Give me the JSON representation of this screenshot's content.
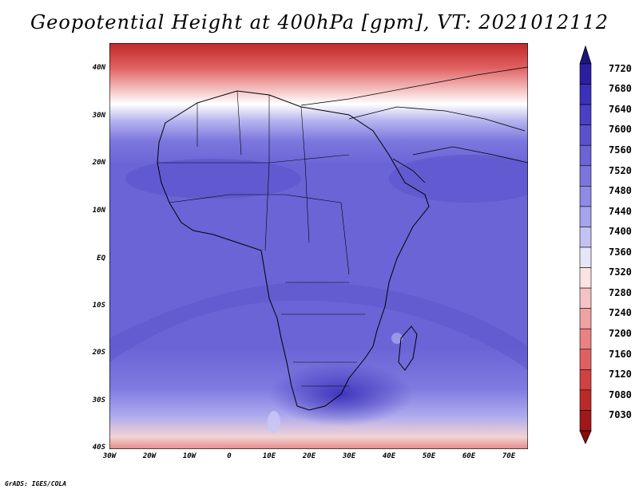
{
  "title": "Geopotential Height at 400hPa [gpm], VT: 2021012112",
  "credit": "GrADS: IGES/COLA",
  "map": {
    "region": "Africa",
    "latitudes": [
      "40N",
      "30N",
      "20N",
      "10N",
      "EQ",
      "10S",
      "20S",
      "30S",
      "40S"
    ],
    "longitudes": [
      "30W",
      "20W",
      "10W",
      "0",
      "10E",
      "20E",
      "30E",
      "40E",
      "50E",
      "60E",
      "70E"
    ]
  },
  "colorbar": {
    "labels": [
      "7720",
      "7680",
      "7640",
      "7600",
      "7560",
      "7520",
      "7480",
      "7440",
      "7400",
      "7360",
      "7320",
      "7280",
      "7240",
      "7200",
      "7160",
      "7120",
      "7080",
      "7030"
    ],
    "colors": [
      "#2b1fa0",
      "#3a31b8",
      "#4a40c4",
      "#5a52cc",
      "#6a64d6",
      "#7b76de",
      "#8e8be4",
      "#a6a4ec",
      "#c3c2f3",
      "#e6e6fb",
      "#fbe3e3",
      "#f5c3c3",
      "#efa2a2",
      "#e98282",
      "#df6060",
      "#d04242",
      "#bb2a2a",
      "#a01818"
    ],
    "top_arrow_color": "#1e1480",
    "bottom_arrow_color": "#8a0c0c"
  }
}
